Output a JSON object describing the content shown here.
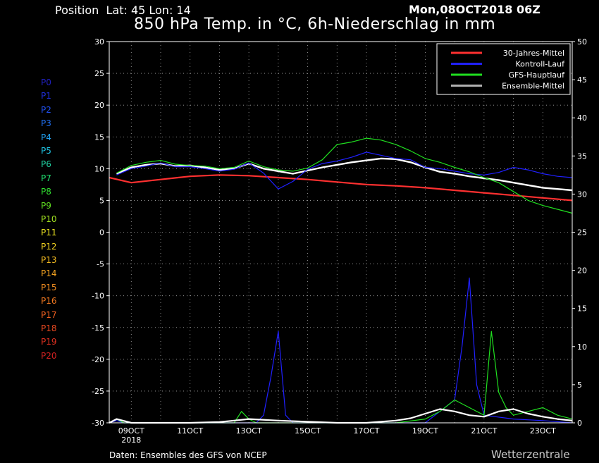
{
  "header": {
    "position": "Position  Lat: 45 Lon: 14",
    "date": "Mon,08OCT2018 06Z",
    "title": "850 hPa Temp. in °C, 6h-Niederschlag in mm"
  },
  "footer": {
    "source": "Daten: Ensembles des GFS von NCEP",
    "brand": "Wetterzentrale"
  },
  "members": [
    {
      "label": "P0",
      "color": "#2020c0"
    },
    {
      "label": "P1",
      "color": "#2030e0"
    },
    {
      "label": "P2",
      "color": "#2050f0"
    },
    {
      "label": "P3",
      "color": "#2070f0"
    },
    {
      "label": "P4",
      "color": "#20a0f0"
    },
    {
      "label": "P5",
      "color": "#20c8e8"
    },
    {
      "label": "P6",
      "color": "#20d0a0"
    },
    {
      "label": "P7",
      "color": "#20e070"
    },
    {
      "label": "P8",
      "color": "#30e030"
    },
    {
      "label": "P9",
      "color": "#60e020"
    },
    {
      "label": "P10",
      "color": "#a0e020"
    },
    {
      "label": "P11",
      "color": "#e8e020"
    },
    {
      "label": "P12",
      "color": "#f0d020"
    },
    {
      "label": "P13",
      "color": "#f0b820"
    },
    {
      "label": "P14",
      "color": "#f0a020"
    },
    {
      "label": "P15",
      "color": "#f08c20"
    },
    {
      "label": "P16",
      "color": "#f07820"
    },
    {
      "label": "P17",
      "color": "#f06020"
    },
    {
      "label": "P18",
      "color": "#e84820"
    },
    {
      "label": "P19",
      "color": "#e03020"
    },
    {
      "label": "P20",
      "color": "#d02020"
    }
  ],
  "chart_data": {
    "type": "line",
    "x_ticks": [
      "09OCT",
      "11OCT",
      "13OCT",
      "15OCT",
      "17OCT",
      "19OCT",
      "21OCT",
      "23OCT"
    ],
    "x_tick_sub": "2018",
    "x_range_days": [
      8.25,
      24.0
    ],
    "y_left": {
      "ticks": [
        30,
        25,
        20,
        15,
        10,
        5,
        0,
        -5,
        -10,
        -15,
        -20,
        -25,
        -30
      ],
      "range": [
        -30,
        30
      ]
    },
    "y_right": {
      "ticks": [
        50,
        45,
        40,
        35,
        30,
        25,
        20,
        15,
        10,
        5,
        0
      ],
      "range": [
        0,
        50
      ]
    },
    "grid": true,
    "legend": {
      "placement": "top-right",
      "entries": [
        {
          "name": "30-Jahres-Mittel",
          "color": "#ff3030"
        },
        {
          "name": "Kontroll-Lauf",
          "color": "#2020ff"
        },
        {
          "name": "GFS-Hauptlauf",
          "color": "#20e020"
        },
        {
          "name": "Ensemble-Mittel",
          "color": "#b0b0b0"
        }
      ]
    },
    "series": [
      {
        "name": "30-Jahres-Mittel",
        "axis": "left",
        "color": "#ff3030",
        "width": 2.2,
        "x": [
          8.25,
          9,
          10,
          11,
          12,
          13,
          14,
          15,
          16,
          17,
          18,
          19,
          20,
          21,
          22,
          23,
          24
        ],
        "y": [
          8.6,
          7.8,
          8.3,
          8.8,
          9.0,
          8.9,
          8.6,
          8.3,
          7.9,
          7.5,
          7.3,
          7.0,
          6.6,
          6.2,
          5.8,
          5.4,
          5.0
        ]
      },
      {
        "name": "Ensemble-Mittel",
        "axis": "left",
        "color": "#ffffff",
        "width": 2.4,
        "x": [
          8.5,
          9,
          9.5,
          10,
          10.5,
          11,
          11.5,
          12,
          12.5,
          13,
          13.5,
          14,
          14.5,
          15,
          15.5,
          16,
          16.5,
          17,
          17.5,
          18,
          18.5,
          19,
          19.5,
          20,
          20.5,
          21,
          21.5,
          22,
          22.5,
          23,
          23.5,
          24
        ],
        "y": [
          9.2,
          10.2,
          10.6,
          10.8,
          10.4,
          10.5,
          10.2,
          9.8,
          10.0,
          10.8,
          10.0,
          9.6,
          9.2,
          9.7,
          10.2,
          10.6,
          11.0,
          11.3,
          11.6,
          11.5,
          11.0,
          10.2,
          9.5,
          9.2,
          8.8,
          8.5,
          8.2,
          7.8,
          7.4,
          7.0,
          6.8,
          6.6
        ]
      },
      {
        "name": "Kontroll-Lauf",
        "axis": "left",
        "color": "#2020ff",
        "width": 1.2,
        "x": [
          8.5,
          9,
          9.5,
          10,
          10.5,
          11,
          11.5,
          12,
          12.5,
          13,
          13.5,
          14,
          14.5,
          15,
          15.5,
          16,
          16.5,
          17,
          17.5,
          18,
          18.5,
          19,
          19.5,
          20,
          20.5,
          21,
          21.5,
          22,
          22.5,
          23,
          23.5,
          24
        ],
        "y": [
          9.0,
          10.0,
          10.4,
          10.9,
          10.3,
          10.3,
          10.0,
          9.6,
          9.9,
          10.9,
          9.3,
          6.8,
          8.0,
          9.9,
          10.8,
          11.2,
          11.8,
          12.6,
          12.1,
          11.6,
          11.4,
          10.2,
          10.0,
          9.6,
          9.2,
          9.0,
          9.4,
          10.2,
          9.8,
          9.2,
          8.8,
          8.6
        ]
      },
      {
        "name": "GFS-Hauptlauf",
        "axis": "left",
        "color": "#20e020",
        "width": 1.2,
        "x": [
          8.5,
          9,
          9.5,
          10,
          10.5,
          11,
          11.5,
          12,
          12.5,
          13,
          13.5,
          14,
          14.5,
          15,
          15.5,
          16,
          16.5,
          17,
          17.5,
          18,
          18.5,
          19,
          19.5,
          20,
          20.5,
          21,
          21.5,
          22,
          22.5,
          23,
          23.5,
          24
        ],
        "y": [
          9.3,
          10.5,
          11.0,
          11.3,
          10.7,
          10.5,
          10.4,
          10.0,
          10.2,
          11.2,
          10.3,
          9.8,
          9.6,
          10.1,
          11.4,
          13.8,
          14.2,
          14.8,
          14.5,
          13.8,
          12.8,
          11.6,
          11.0,
          10.2,
          9.5,
          8.6,
          7.8,
          6.4,
          5.0,
          4.2,
          3.6,
          3.0
        ]
      },
      {
        "name": "Kontroll-Lauf Niederschlag",
        "axis": "right",
        "color": "#2020ff",
        "width": 1.2,
        "x": [
          8.25,
          8.5,
          8.75,
          9,
          11,
          12,
          12.5,
          13,
          13.25,
          13.5,
          13.75,
          14,
          14.25,
          14.5,
          16,
          17,
          18,
          19,
          19.5,
          20,
          20.25,
          20.5,
          20.75,
          21,
          22,
          23,
          24
        ],
        "y": [
          0,
          0.3,
          0,
          0,
          0,
          0,
          0,
          0,
          0,
          1,
          6,
          12,
          1,
          0,
          0,
          0,
          0,
          0,
          1.5,
          3,
          10,
          19,
          5,
          1,
          0.5,
          0.3,
          0
        ]
      },
      {
        "name": "GFS-Hauptlauf Niederschlag",
        "axis": "right",
        "color": "#20e020",
        "width": 1.2,
        "x": [
          8.25,
          8.5,
          8.75,
          9,
          12,
          12.5,
          12.75,
          13,
          13.25,
          16,
          18,
          19,
          19.5,
          20,
          20.5,
          21,
          21.25,
          21.5,
          21.75,
          22,
          22.5,
          23,
          23.5,
          24
        ],
        "y": [
          0,
          0.5,
          0,
          0,
          0,
          0,
          1.5,
          0.5,
          0,
          0,
          0,
          0.5,
          1.5,
          3,
          2,
          1,
          12,
          4,
          2,
          1,
          1.5,
          2,
          1,
          0.5
        ]
      },
      {
        "name": "Ensemble-Mittel Niederschlag",
        "axis": "right",
        "color": "#ffffff",
        "width": 2.2,
        "x": [
          8.25,
          8.5,
          9,
          11,
          12,
          12.5,
          13,
          14,
          16,
          17,
          18,
          18.5,
          19,
          19.5,
          20,
          20.5,
          21,
          21.5,
          22,
          22.5,
          23,
          23.5,
          24
        ],
        "y": [
          0,
          0.5,
          0,
          0,
          0.1,
          0.3,
          0.5,
          0.3,
          0,
          0,
          0.3,
          0.6,
          1.2,
          1.8,
          1.5,
          1.0,
          0.8,
          1.5,
          1.8,
          1.2,
          0.8,
          0.5,
          0.3
        ]
      }
    ]
  }
}
